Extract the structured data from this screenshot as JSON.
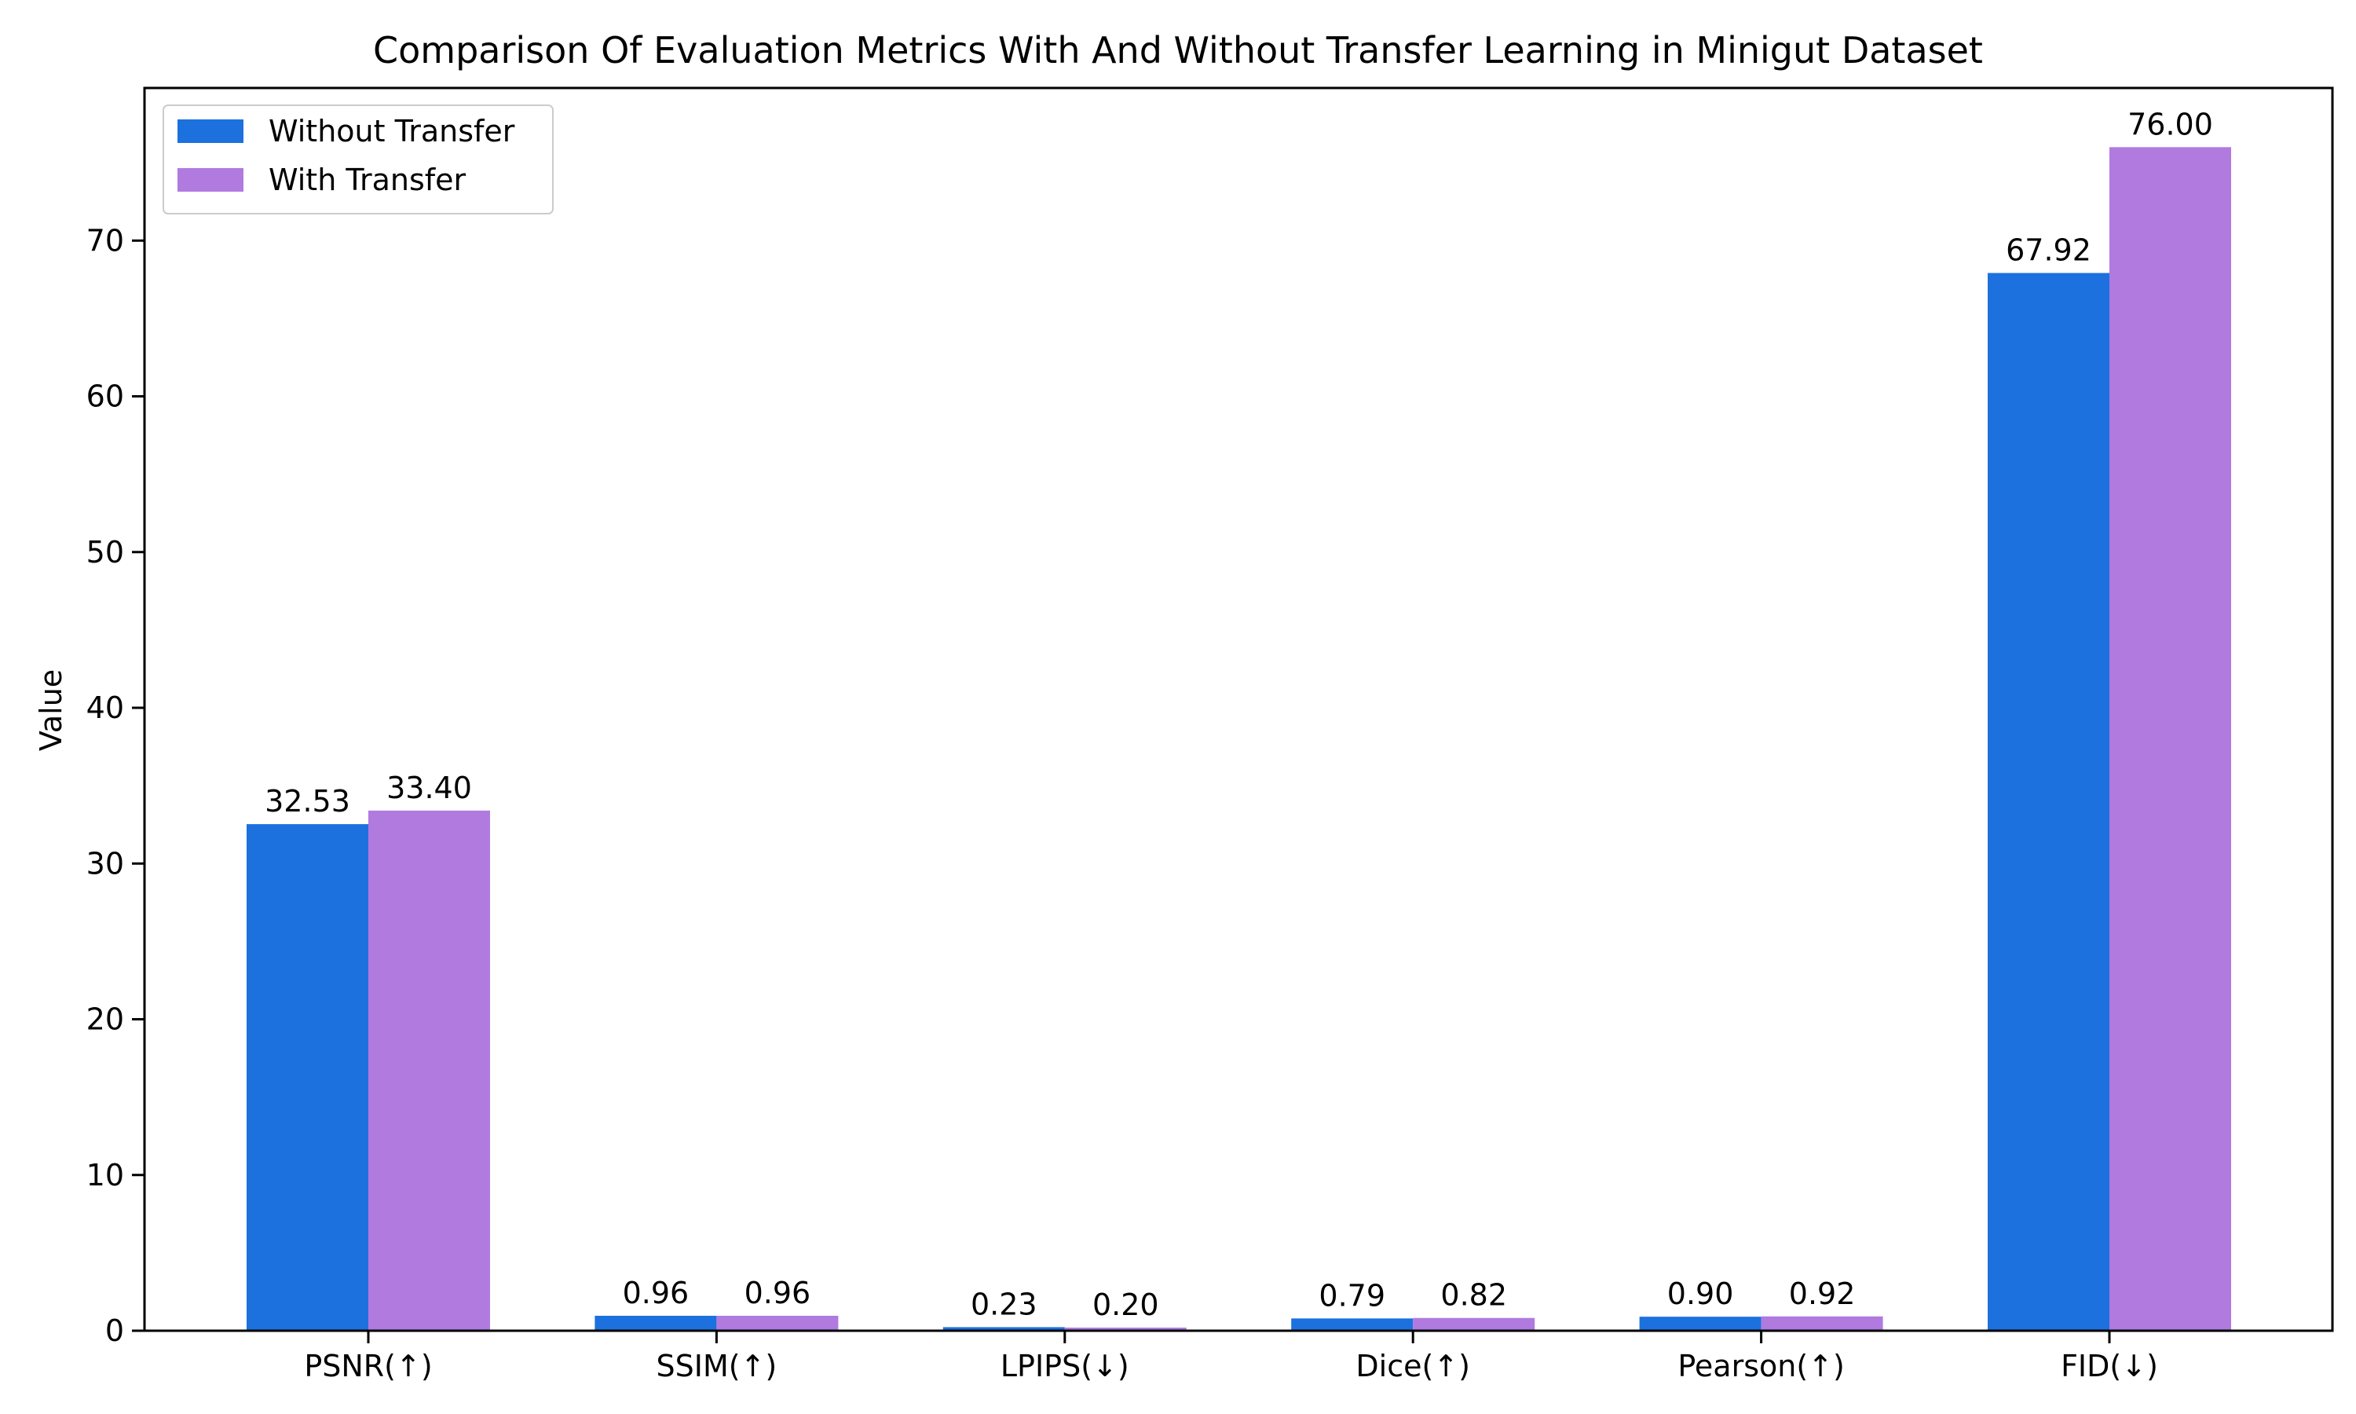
{
  "chart_data": {
    "type": "bar",
    "title": "Comparison Of Evaluation Metrics With And Without Transfer Learning in Minigut Dataset",
    "xlabel": "",
    "ylabel": "Value",
    "categories": [
      "PSNR(↑)",
      "SSIM(↑)",
      "LPIPS(↓)",
      "Dice(↑)",
      "Pearson(↑)",
      "FID(↓)"
    ],
    "series": [
      {
        "name": "Without Transfer",
        "color": "#1c71de",
        "values": [
          32.53,
          0.96,
          0.23,
          0.79,
          0.9,
          67.92
        ],
        "labels": [
          "32.53",
          "0.96",
          "0.23",
          "0.79",
          "0.90",
          "67.92"
        ]
      },
      {
        "name": "With Transfer",
        "color": "#b07adf",
        "values": [
          33.4,
          0.96,
          0.2,
          0.82,
          0.92,
          76.0
        ],
        "labels": [
          "33.40",
          "0.96",
          "0.20",
          "0.82",
          "0.92",
          "76.00"
        ]
      }
    ],
    "ylim": [
      0,
      79.8
    ],
    "yticks": [
      0,
      10,
      20,
      30,
      40,
      50,
      60,
      70
    ],
    "legend_position": "top-left",
    "grid": false
  }
}
